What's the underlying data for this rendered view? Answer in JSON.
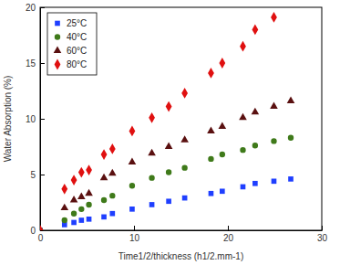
{
  "chart_data": {
    "type": "scatter",
    "x_label": "Time1/2/thickness (h1/2.mm-1)",
    "y_label": "Water Absorption (%)",
    "x": [
      0,
      2.6,
      3.6,
      4.4,
      5.2,
      6.8,
      7.7,
      9.8,
      11.9,
      13.7,
      15.4,
      18.2,
      19.4,
      21.6,
      22.9,
      24.9,
      26.7
    ],
    "series": [
      {
        "name": "25°C",
        "color": "#1f3fff",
        "marker": "square",
        "values": [
          0,
          0.5,
          0.7,
          0.9,
          1.0,
          1.2,
          1.5,
          1.9,
          2.3,
          2.6,
          2.9,
          3.3,
          3.5,
          3.9,
          4.2,
          4.4,
          4.6
        ]
      },
      {
        "name": "40°C",
        "color": "#3f7a1a",
        "marker": "circle",
        "values": [
          0,
          0.9,
          1.5,
          1.9,
          2.3,
          2.7,
          3.1,
          4.0,
          4.7,
          5.2,
          5.6,
          6.4,
          6.8,
          7.2,
          7.6,
          8.0,
          8.3
        ]
      },
      {
        "name": "60°C",
        "color": "#5a1010",
        "marker": "triangle",
        "values": [
          0,
          2.0,
          2.7,
          3.0,
          3.3,
          4.7,
          5.1,
          6.1,
          6.9,
          7.5,
          8.1,
          8.9,
          9.3,
          10.1,
          10.6,
          11.1,
          11.6
        ]
      },
      {
        "name": "80°C",
        "color": "#e01010",
        "marker": "diamond",
        "values": [
          0,
          3.7,
          4.5,
          5.2,
          5.4,
          6.8,
          7.3,
          8.9,
          10.1,
          11.1,
          12.3,
          14.1,
          15.0,
          16.5,
          18.0,
          19.1,
          null
        ]
      }
    ],
    "xlim": [
      0,
      30
    ],
    "xticks": [
      0,
      10,
      20,
      30
    ],
    "ylim": [
      0,
      20
    ],
    "yticks": [
      0,
      5,
      10,
      15,
      20
    ],
    "grid": false,
    "legend": "upper-left"
  }
}
